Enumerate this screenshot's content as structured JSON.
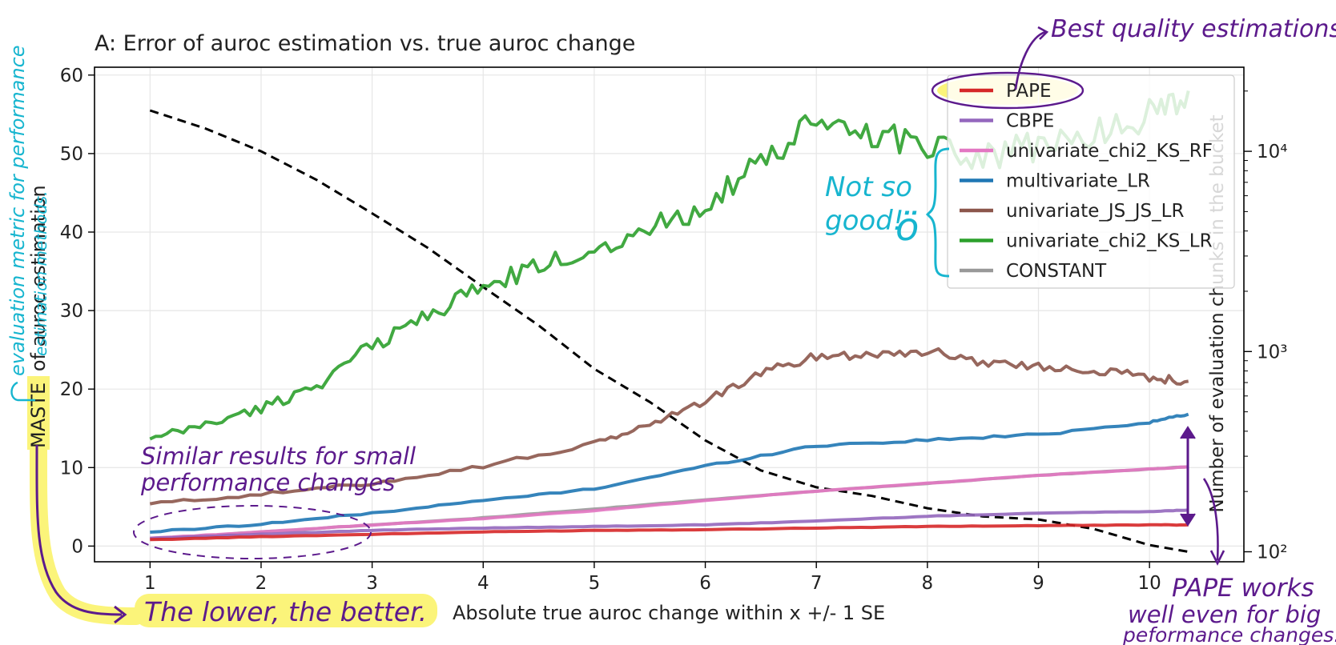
{
  "chart_data": {
    "type": "line",
    "title": "A: Error of auroc estimation vs. true auroc change",
    "xlabel": "Absolute true auroc change within x +/- 1 SE",
    "ylabel_parts": {
      "highlight": "MASTE",
      "rest": "of auroc estimation"
    },
    "y2label": "Number of evaluation chunks in the bucket",
    "xlim": [
      0.5,
      10.85
    ],
    "ylim": [
      -2,
      61
    ],
    "y2_log_range": [
      1.95,
      4.42
    ],
    "xticks": [
      "1",
      "2",
      "3",
      "4",
      "5",
      "6",
      "7",
      "8",
      "9",
      "10"
    ],
    "yticks": [
      "0",
      "10",
      "20",
      "30",
      "40",
      "50",
      "60"
    ],
    "y2ticks": [
      "10²",
      "10³",
      "10⁴"
    ],
    "grid": true,
    "legend_position": "top-right",
    "series": [
      {
        "name": "PAPE",
        "color": "#d62728",
        "x": [
          1,
          2,
          3,
          4,
          5,
          6,
          7,
          8,
          9,
          10,
          10.35
        ],
        "y": [
          0.8,
          1.2,
          1.5,
          1.8,
          2.0,
          2.1,
          2.3,
          2.5,
          2.6,
          2.7,
          2.7
        ]
      },
      {
        "name": "CBPE",
        "color": "#9467bd",
        "x": [
          1,
          2,
          3,
          4,
          5,
          6,
          7,
          8,
          9,
          10,
          10.35
        ],
        "y": [
          1.0,
          1.5,
          2.0,
          2.3,
          2.5,
          2.7,
          3.2,
          3.8,
          4.2,
          4.4,
          4.6
        ]
      },
      {
        "name": "univariate_chi2_KS_RF",
        "color": "#e377c2",
        "x": [
          1,
          2,
          3,
          4,
          5,
          6,
          7,
          8,
          9,
          10,
          10.35
        ],
        "y": [
          1.0,
          1.8,
          2.7,
          3.5,
          4.5,
          5.8,
          7.0,
          8.0,
          9.0,
          9.8,
          10.1
        ]
      },
      {
        "name": "multivariate_LR",
        "color": "#1f77b4",
        "x": [
          1,
          2,
          3,
          4,
          5,
          6,
          7,
          8,
          9,
          10,
          10.35
        ],
        "y": [
          1.8,
          2.8,
          4.2,
          5.8,
          7.3,
          10.2,
          12.8,
          13.5,
          14.2,
          15.8,
          16.8
        ]
      },
      {
        "name": "univariate_JS_JS_LR",
        "color": "#8c564b",
        "x": [
          1,
          2,
          3,
          4,
          5,
          5.5,
          6,
          6.5,
          7,
          7.5,
          8,
          8.5,
          9,
          9.5,
          10,
          10.35
        ],
        "y": [
          5.4,
          6.6,
          8.0,
          10.2,
          13.0,
          15.5,
          18.5,
          22.0,
          24.2,
          24.5,
          24.8,
          23.5,
          22.8,
          22.5,
          21.5,
          21.0
        ]
      },
      {
        "name": "univariate_chi2_KS_LR",
        "color": "#2ca02c",
        "x": [
          1,
          1.5,
          2,
          2.5,
          3,
          3.5,
          4,
          4.5,
          5,
          5.5,
          6,
          6.5,
          7,
          7.5,
          8,
          8.5,
          9,
          9.5,
          10,
          10.35
        ],
        "y": [
          13.5,
          15.5,
          17.5,
          20.5,
          25.5,
          29.5,
          33.0,
          35.5,
          38.0,
          40.5,
          43.5,
          48.5,
          54.0,
          52.5,
          51.5,
          49.5,
          51.0,
          52.5,
          55.0,
          58.0
        ]
      },
      {
        "name": "CONSTANT",
        "color": "#999999",
        "x": [
          1,
          2,
          3,
          4,
          5,
          6,
          7,
          8,
          9,
          10,
          10.35
        ],
        "y": [
          0.9,
          1.8,
          2.7,
          3.6,
          4.7,
          5.9,
          7.0,
          8.0,
          9.0,
          9.8,
          10.1
        ]
      }
    ],
    "bucket_count_series": {
      "style": "dashed",
      "color": "#000000",
      "x": [
        1,
        1.5,
        2,
        2.5,
        3,
        3.5,
        4,
        4.5,
        5,
        5.5,
        6,
        6.5,
        7,
        7.5,
        8,
        8.5,
        9,
        9.5,
        10,
        10.35
      ],
      "y": [
        16000,
        13000,
        10000,
        7200,
        4900,
        3300,
        2100,
        1350,
        820,
        560,
        360,
        255,
        210,
        190,
        165,
        150,
        145,
        130,
        108,
        100
      ]
    }
  },
  "annotations": {
    "best_quality": "Best quality estimations",
    "not_so_good_1": "Not so",
    "not_so_good_2": "good!",
    "emoji": "ö",
    "similar_1": "Similar results for small",
    "similar_2": "performance changes",
    "lower_better": "The lower, the better.",
    "pape_works_1": "PAPE works",
    "pape_works_2": "well even for big",
    "pape_works_3": "peformance changes.",
    "eval_metric_1": "evaluation metric for performance",
    "eval_metric_2": "estimation methods."
  },
  "colors": {
    "annotation_purple": "#5c1a8c",
    "annotation_cyan": "#17b5cf",
    "highlight_yellow": "#fbf47a"
  }
}
